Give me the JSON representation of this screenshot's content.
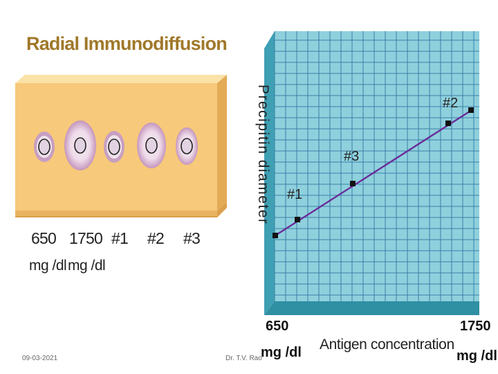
{
  "title": "Radial Immunodiffusion",
  "wells": [
    {
      "label": "650",
      "unit": "mg /dl"
    },
    {
      "label": "1750",
      "unit": "mg /dl"
    },
    {
      "label": "#1",
      "unit": ""
    },
    {
      "label": "#2",
      "unit": ""
    },
    {
      "label": "#3",
      "unit": ""
    }
  ],
  "chart": {
    "ylabel": "Precipitin diameter",
    "xlabel": "Antigen concentration",
    "x_min_label": "650",
    "x_min_unit": "mg /dl",
    "x_max_label": "1750",
    "x_max_unit": "mg /dl",
    "point_labels": [
      "#1",
      "#3",
      "#2"
    ]
  },
  "footer": {
    "date": "09-03-2021",
    "author": "Dr. T.V. Rao"
  },
  "colors": {
    "title": "#a0782a",
    "plate": "#f7c97a",
    "grid_bg": "#8fd0dd",
    "grid_line": "#3a7fa6",
    "line": "#6a2b99"
  }
}
